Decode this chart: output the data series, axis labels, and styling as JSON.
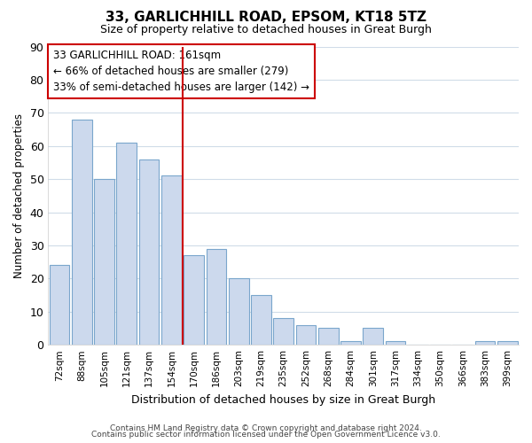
{
  "title": "33, GARLICHHILL ROAD, EPSOM, KT18 5TZ",
  "subtitle": "Size of property relative to detached houses in Great Burgh",
  "xlabel": "Distribution of detached houses by size in Great Burgh",
  "ylabel": "Number of detached properties",
  "bar_color": "#ccd9ed",
  "bar_edge_color": "#7aa6cc",
  "categories": [
    "72sqm",
    "88sqm",
    "105sqm",
    "121sqm",
    "137sqm",
    "154sqm",
    "170sqm",
    "186sqm",
    "203sqm",
    "219sqm",
    "235sqm",
    "252sqm",
    "268sqm",
    "284sqm",
    "301sqm",
    "317sqm",
    "334sqm",
    "350sqm",
    "366sqm",
    "383sqm",
    "399sqm"
  ],
  "values": [
    24,
    68,
    50,
    61,
    56,
    51,
    27,
    29,
    20,
    15,
    8,
    6,
    5,
    1,
    5,
    1,
    0,
    0,
    0,
    1,
    1
  ],
  "ylim": [
    0,
    90
  ],
  "yticks": [
    0,
    10,
    20,
    30,
    40,
    50,
    60,
    70,
    80,
    90
  ],
  "vline_x": 5.5,
  "vline_color": "#cc0000",
  "annotation_title": "33 GARLICHHILL ROAD: 161sqm",
  "annotation_line1": "← 66% of detached houses are smaller (279)",
  "annotation_line2": "33% of semi-detached houses are larger (142) →",
  "annotation_box_color": "#ffffff",
  "annotation_box_edge": "#cc0000",
  "footer1": "Contains HM Land Registry data © Crown copyright and database right 2024.",
  "footer2": "Contains public sector information licensed under the Open Government Licence v3.0.",
  "background_color": "#ffffff",
  "plot_bg_color": "#ffffff",
  "grid_color": "#d0dce8"
}
